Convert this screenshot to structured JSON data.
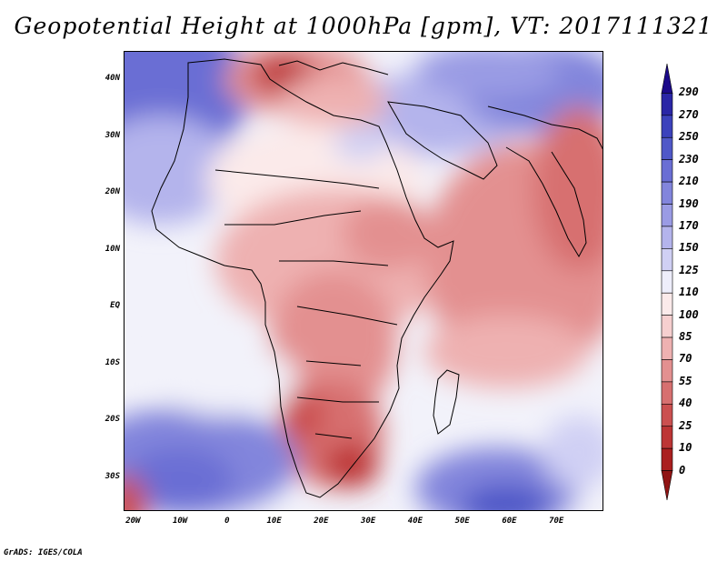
{
  "title": "Geopotential Height at 1000hPa [gpm], VT: 2017111321",
  "lat_labels": [
    "40N",
    "30N",
    "20N",
    "10N",
    "EQ",
    "10S",
    "20S",
    "30S"
  ],
  "lat_values": [
    40,
    30,
    20,
    10,
    0,
    -10,
    -20,
    -30
  ],
  "lon_labels": [
    "20W",
    "10W",
    "0",
    "10E",
    "20E",
    "30E",
    "40E",
    "50E",
    "60E",
    "70E"
  ],
  "lon_values": [
    -20,
    -10,
    0,
    10,
    20,
    30,
    40,
    50,
    60,
    70
  ],
  "map_extent": {
    "lon_min": -22,
    "lon_max": 80,
    "lat_min": -36,
    "lat_max": 45
  },
  "colorbar": {
    "levels": [
      "290",
      "270",
      "250",
      "230",
      "210",
      "190",
      "170",
      "150",
      "125",
      "110",
      "100",
      "85",
      "70",
      "55",
      "40",
      "25",
      "10",
      "0"
    ],
    "colors": [
      "#1c0a8a",
      "#2a26a6",
      "#3c42bc",
      "#5058c8",
      "#6a6ed4",
      "#8285dc",
      "#9a9be4",
      "#b4b4ec",
      "#d0d0f4",
      "#eeeefb",
      "#fbeaea",
      "#f6cfcf",
      "#eeb1b1",
      "#e39090",
      "#d77070",
      "#cb5050",
      "#bd3535",
      "#aa1f1f",
      "#901414"
    ]
  },
  "credit": "GrADS: IGES/COLA"
}
